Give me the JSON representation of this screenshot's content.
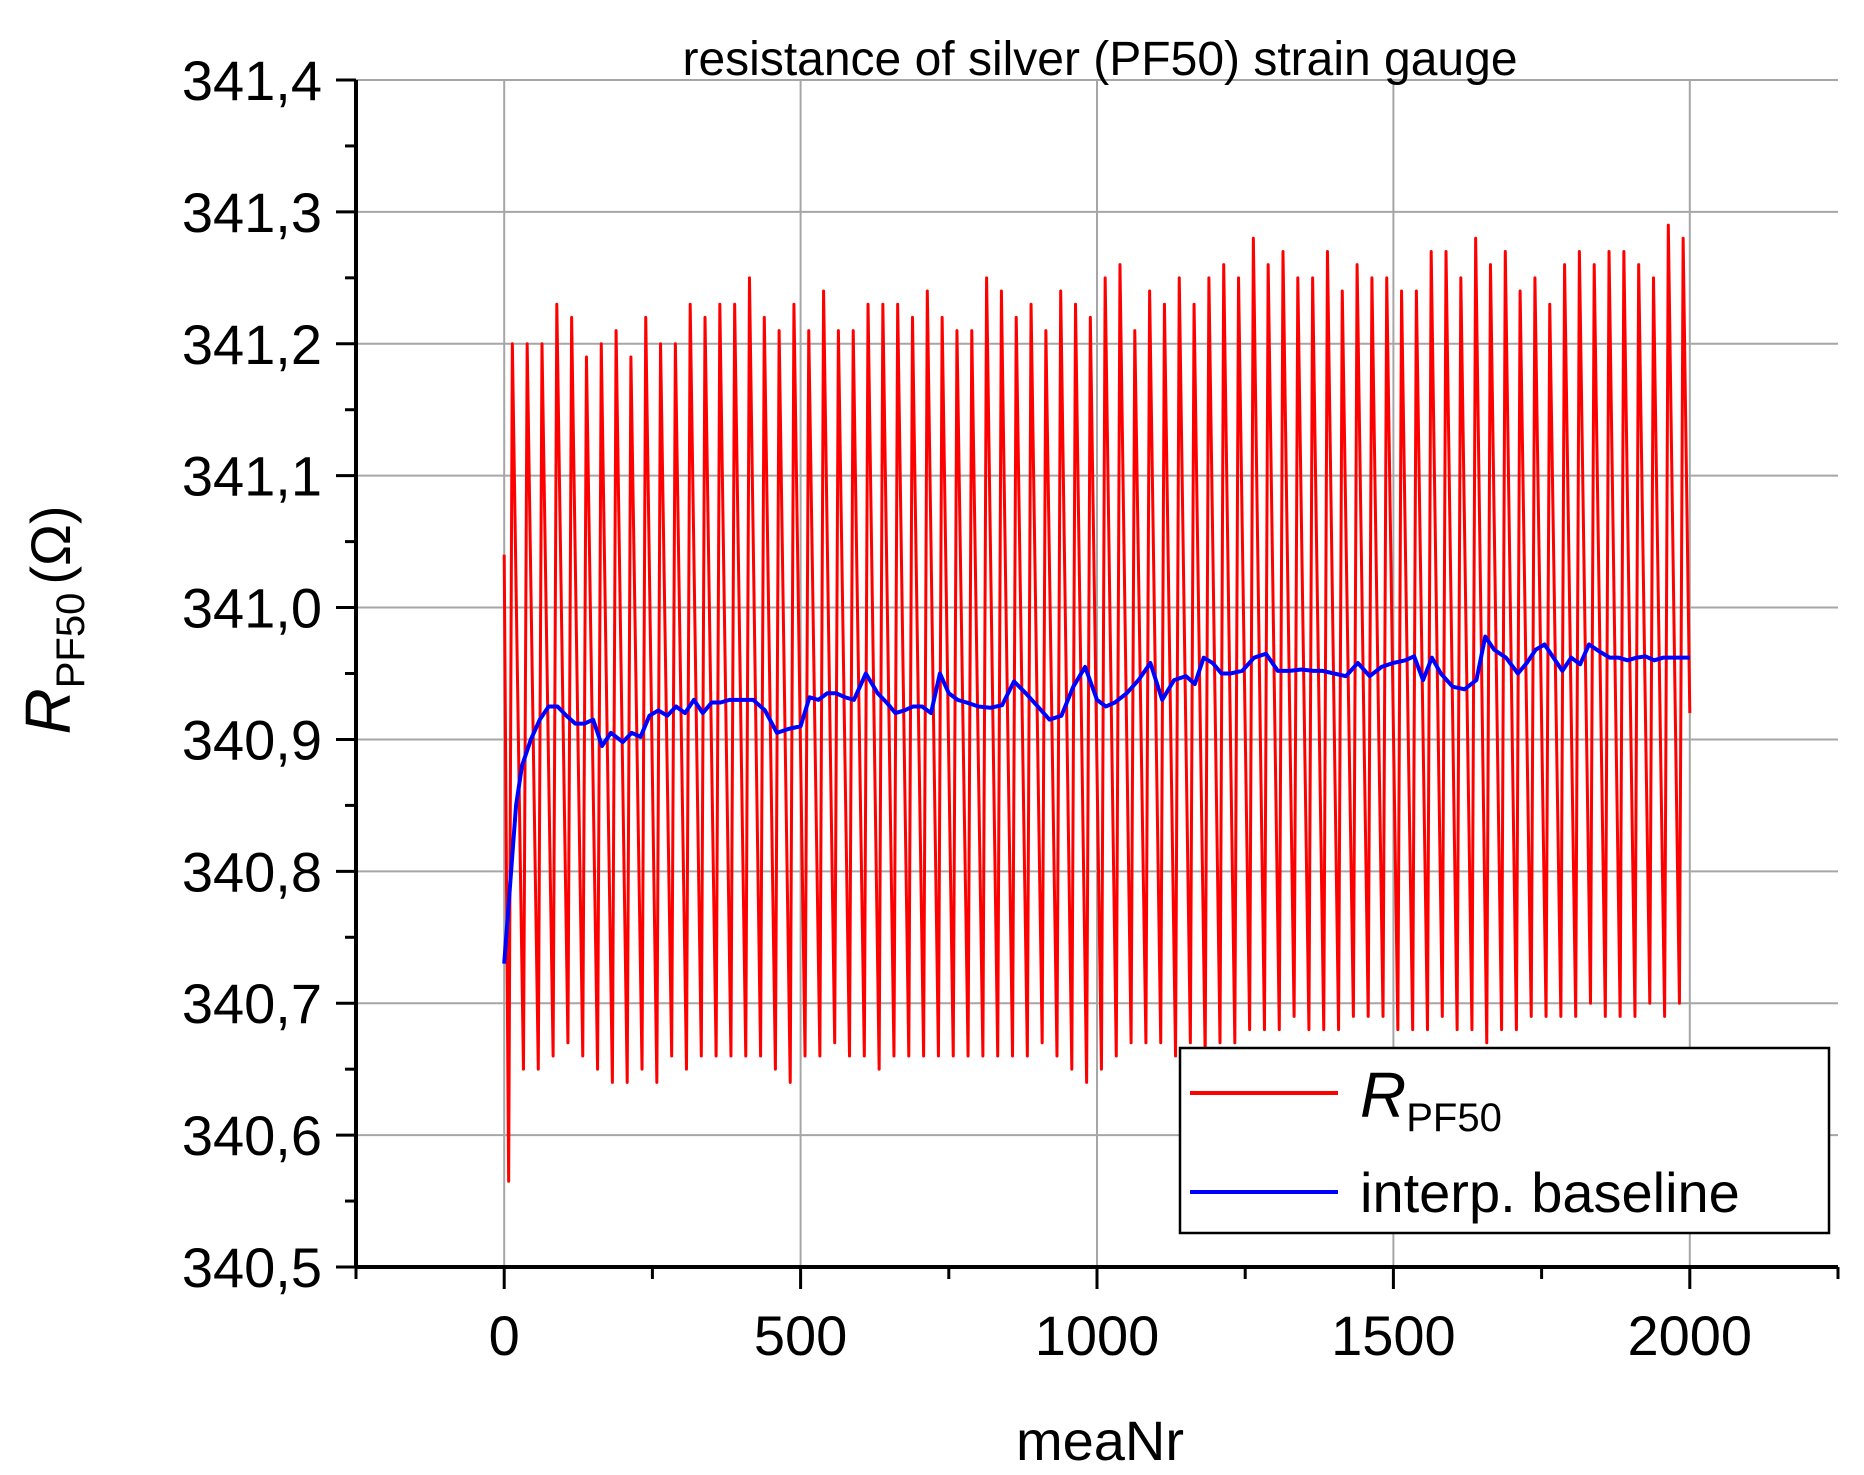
{
  "chart_data": {
    "type": "line",
    "title": "resistance of silver (PF50) strain gauge",
    "xlabel": "meaNr",
    "ylabel": {
      "symbol": "R",
      "subscript": "PF50",
      "unit": "(Ω)"
    },
    "xlim": [
      -250,
      2250
    ],
    "ylim": [
      340.5,
      341.4
    ],
    "x_ticks": [
      0,
      500,
      1000,
      1500,
      2000
    ],
    "x_tick_labels": [
      "0",
      "500",
      "1000",
      "1500",
      "2000"
    ],
    "y_ticks": [
      340.5,
      340.6,
      340.7,
      340.8,
      340.9,
      341.0,
      341.1,
      341.2,
      341.3,
      341.4
    ],
    "y_tick_labels": [
      "340,5",
      "340,6",
      "340,7",
      "340,8",
      "340,9",
      "341,0",
      "341,1",
      "341,2",
      "341,3",
      "341,4"
    ],
    "grid": true,
    "legend_position": "bottom-right",
    "series": [
      {
        "name": "R_PF50",
        "legend_symbol": "R",
        "legend_subscript": "PF50",
        "color": "#ff0000",
        "style": "oscillating",
        "x_start": 0,
        "x_end": 2000,
        "cycles": 80,
        "start_value": 341.04,
        "first_min": 340.565,
        "end_value": 340.92,
        "peaks": [
          341.2,
          341.2,
          341.2,
          341.23,
          341.22,
          341.19,
          341.2,
          341.21,
          341.19,
          341.22,
          341.2,
          341.2,
          341.23,
          341.22,
          341.23,
          341.23,
          341.25,
          341.22,
          341.21,
          341.23,
          341.21,
          341.24,
          341.21,
          341.21,
          341.23,
          341.23,
          341.23,
          341.22,
          341.24,
          341.22,
          341.21,
          341.21,
          341.25,
          341.24,
          341.22,
          341.23,
          341.21,
          341.24,
          341.23,
          341.22,
          341.25,
          341.26,
          341.21,
          341.24,
          341.23,
          341.25,
          341.23,
          341.25,
          341.26,
          341.25,
          341.28,
          341.26,
          341.27,
          341.25,
          341.25,
          341.27,
          341.24,
          341.26,
          341.25,
          341.25,
          341.24,
          341.24,
          341.27,
          341.27,
          341.25,
          341.28,
          341.26,
          341.27,
          341.24,
          341.25,
          341.23,
          341.26,
          341.27,
          341.26,
          341.27,
          341.27,
          341.26,
          341.25,
          341.29,
          341.28
        ],
        "troughs": [
          340.565,
          340.65,
          340.65,
          340.66,
          340.67,
          340.66,
          340.65,
          340.64,
          340.64,
          340.65,
          340.64,
          340.66,
          340.65,
          340.66,
          340.66,
          340.66,
          340.66,
          340.66,
          340.65,
          340.64,
          340.66,
          340.66,
          340.67,
          340.66,
          340.66,
          340.65,
          340.66,
          340.66,
          340.66,
          340.66,
          340.66,
          340.66,
          340.66,
          340.66,
          340.66,
          340.66,
          340.67,
          340.66,
          340.65,
          340.64,
          340.65,
          340.66,
          340.67,
          340.67,
          340.67,
          340.66,
          340.67,
          340.66,
          340.67,
          340.67,
          340.68,
          340.68,
          340.68,
          340.69,
          340.68,
          340.68,
          340.68,
          340.69,
          340.69,
          340.69,
          340.68,
          340.68,
          340.68,
          340.69,
          340.68,
          340.68,
          340.67,
          340.68,
          340.68,
          340.69,
          340.69,
          340.69,
          340.69,
          340.7,
          340.69,
          340.69,
          340.69,
          340.7,
          340.69,
          340.7
        ]
      },
      {
        "name": "interp. baseline",
        "color": "#0000ff",
        "style": "line",
        "x": [
          0,
          10,
          20,
          30,
          45,
          60,
          75,
          90,
          105,
          120,
          135,
          150,
          165,
          180,
          200,
          215,
          230,
          245,
          260,
          275,
          290,
          305,
          320,
          335,
          350,
          365,
          380,
          400,
          420,
          440,
          460,
          480,
          500,
          515,
          530,
          545,
          560,
          575,
          590,
          610,
          630,
          645,
          660,
          675,
          690,
          705,
          720,
          735,
          750,
          765,
          780,
          800,
          820,
          840,
          860,
          880,
          900,
          920,
          940,
          960,
          980,
          1000,
          1015,
          1030,
          1050,
          1070,
          1090,
          1110,
          1130,
          1150,
          1165,
          1180,
          1195,
          1210,
          1225,
          1245,
          1265,
          1285,
          1305,
          1325,
          1345,
          1365,
          1380,
          1400,
          1420,
          1440,
          1460,
          1480,
          1500,
          1520,
          1535,
          1550,
          1565,
          1580,
          1600,
          1620,
          1640,
          1655,
          1670,
          1690,
          1710,
          1725,
          1740,
          1755,
          1770,
          1785,
          1800,
          1815,
          1830,
          1850,
          1865,
          1880,
          1895,
          1910,
          1925,
          1940,
          1955,
          1970,
          1985,
          2000
        ],
        "y": [
          340.73,
          340.79,
          340.85,
          340.88,
          340.9,
          340.915,
          340.925,
          340.925,
          340.918,
          340.912,
          340.912,
          340.915,
          340.895,
          340.905,
          340.898,
          340.905,
          340.902,
          340.918,
          340.922,
          340.918,
          340.925,
          340.92,
          340.93,
          340.92,
          340.928,
          340.928,
          340.93,
          340.93,
          340.93,
          340.922,
          340.905,
          340.908,
          340.91,
          340.932,
          340.93,
          340.935,
          340.935,
          340.932,
          340.93,
          340.95,
          340.935,
          340.928,
          340.92,
          340.922,
          340.925,
          340.925,
          340.92,
          340.95,
          340.935,
          340.93,
          340.928,
          340.925,
          340.924,
          340.926,
          340.944,
          340.935,
          340.925,
          340.915,
          340.918,
          340.94,
          340.955,
          340.93,
          340.925,
          340.928,
          340.935,
          340.945,
          340.958,
          340.93,
          340.945,
          340.948,
          340.942,
          340.962,
          340.958,
          340.95,
          340.95,
          340.952,
          340.962,
          340.965,
          340.952,
          340.952,
          340.953,
          340.952,
          340.952,
          340.95,
          340.948,
          340.958,
          340.948,
          340.955,
          340.958,
          340.96,
          340.963,
          340.945,
          340.962,
          340.95,
          340.94,
          340.938,
          340.945,
          340.978,
          340.968,
          340.962,
          340.95,
          340.958,
          340.968,
          340.972,
          340.962,
          340.952,
          340.962,
          340.957,
          340.972,
          340.966,
          340.962,
          340.962,
          340.96,
          340.962,
          340.963,
          340.96,
          340.962,
          340.962,
          340.962,
          340.962
        ]
      }
    ]
  }
}
